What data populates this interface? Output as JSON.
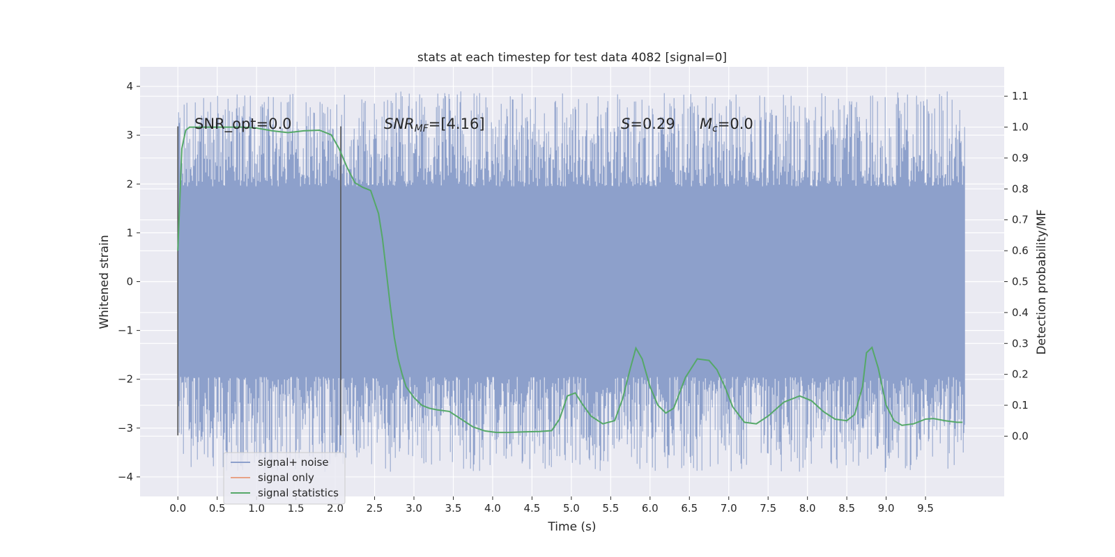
{
  "chart_data": {
    "type": "line",
    "title": "stats at each timestep for test data 4082 [signal=0]",
    "xlabel": "Time (s)",
    "ylabel": "Whitened strain",
    "y2label": "Detection probability/MF",
    "xlim": [
      -0.48,
      10.5
    ],
    "ylim": [
      -4.4,
      4.4
    ],
    "y2lim": [
      -0.195,
      1.195
    ],
    "x_ticks": [
      "0.0",
      "0.5",
      "1.0",
      "1.5",
      "2.0",
      "2.5",
      "3.0",
      "3.5",
      "4.0",
      "4.5",
      "5.0",
      "5.5",
      "6.0",
      "6.5",
      "7.0",
      "7.5",
      "8.0",
      "8.5",
      "9.0",
      "9.5"
    ],
    "y_ticks": [
      "−4",
      "−3",
      "−2",
      "−1",
      "0",
      "1",
      "2",
      "3",
      "4"
    ],
    "y2_ticks": [
      "0.0",
      "0.1",
      "0.2",
      "0.3",
      "0.4",
      "0.5",
      "0.6",
      "0.7",
      "0.8",
      "0.9",
      "1.0",
      "1.1"
    ],
    "grid": true,
    "legend_position": "lower-left",
    "annotations": {
      "snr_opt": "SNR_opt=0.0",
      "snr_mf_prefix": "SNR",
      "snr_mf_sub": "MF",
      "snr_mf_suffix": "=[4.16]",
      "s_sym": "S",
      "s_val": "=0.29",
      "mc_sym": "M",
      "mc_sub": "c",
      "mc_val": "=0.0"
    },
    "markers": [
      {
        "x": 0.0,
        "ymin": -3.15,
        "ymax": 3.18
      },
      {
        "x": 2.07,
        "ymin": -3.15,
        "ymax": 3.18
      }
    ],
    "series": [
      {
        "name": "signal+ noise",
        "color": "#8da0cb",
        "kind": "noise",
        "x_range": [
          0,
          10
        ],
        "core_level": 1.95,
        "peak_level": 3.9
      },
      {
        "name": "signal only",
        "color": "#e8a285",
        "kind": "flat",
        "values": []
      },
      {
        "name": "signal statistics",
        "color": "#55a868",
        "kind": "line",
        "x": [
          0.0,
          0.05,
          0.1,
          0.15,
          0.2,
          0.3,
          0.5,
          0.8,
          1.0,
          1.2,
          1.4,
          1.6,
          1.8,
          1.95,
          2.05,
          2.15,
          2.25,
          2.35,
          2.45,
          2.55,
          2.6,
          2.65,
          2.7,
          2.75,
          2.8,
          2.85,
          2.9,
          3.0,
          3.1,
          3.2,
          3.3,
          3.45,
          3.6,
          3.75,
          3.9,
          4.05,
          4.2,
          4.4,
          4.6,
          4.75,
          4.85,
          4.95,
          5.05,
          5.15,
          5.25,
          5.4,
          5.55,
          5.65,
          5.75,
          5.82,
          5.9,
          6.0,
          6.1,
          6.2,
          6.3,
          6.45,
          6.6,
          6.75,
          6.85,
          6.95,
          7.05,
          7.2,
          7.35,
          7.5,
          7.7,
          7.9,
          8.05,
          8.2,
          8.35,
          8.5,
          8.6,
          8.7,
          8.75,
          8.82,
          8.9,
          9.0,
          9.1,
          9.2,
          9.35,
          9.5,
          9.6,
          9.75,
          9.9,
          9.97
        ],
        "y": [
          0.6,
          0.93,
          0.99,
          1.0,
          1.0,
          1.0,
          1.0,
          1.0,
          0.997,
          0.988,
          0.982,
          0.988,
          0.99,
          0.975,
          0.93,
          0.87,
          0.82,
          0.805,
          0.795,
          0.72,
          0.64,
          0.53,
          0.42,
          0.32,
          0.25,
          0.2,
          0.16,
          0.125,
          0.1,
          0.09,
          0.085,
          0.08,
          0.055,
          0.03,
          0.017,
          0.012,
          0.012,
          0.014,
          0.015,
          0.018,
          0.055,
          0.13,
          0.14,
          0.1,
          0.065,
          0.04,
          0.05,
          0.12,
          0.22,
          0.285,
          0.25,
          0.16,
          0.1,
          0.075,
          0.09,
          0.19,
          0.25,
          0.245,
          0.215,
          0.16,
          0.095,
          0.045,
          0.04,
          0.065,
          0.11,
          0.13,
          0.115,
          0.08,
          0.055,
          0.05,
          0.07,
          0.16,
          0.27,
          0.287,
          0.22,
          0.1,
          0.05,
          0.035,
          0.04,
          0.055,
          0.057,
          0.05,
          0.045,
          0.045
        ]
      }
    ]
  }
}
